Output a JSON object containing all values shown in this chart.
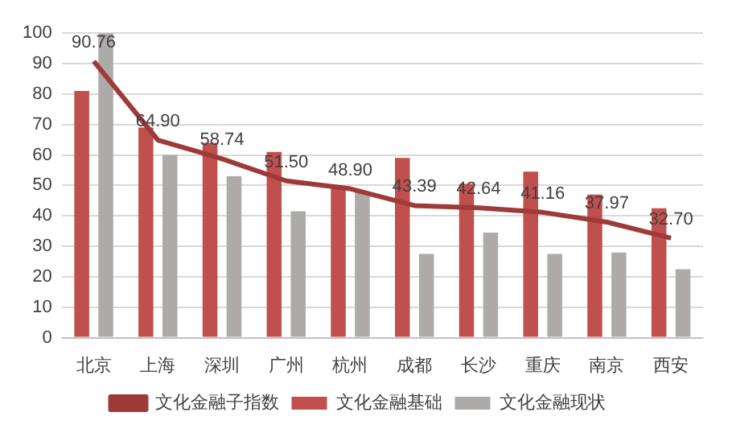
{
  "chart_data": {
    "type": "bar",
    "categories": [
      "北京",
      "上海",
      "深圳",
      "广州",
      "杭州",
      "成都",
      "长沙",
      "重庆",
      "南京",
      "西安"
    ],
    "series": [
      {
        "name": "文化金融基础",
        "color": "#c0504d",
        "values": [
          81,
          69,
          64,
          61,
          49,
          59,
          50.5,
          54.5,
          47,
          42.5
        ]
      },
      {
        "name": "文化金融现状",
        "color": "#aeaaaa",
        "values": [
          100,
          60,
          53,
          41.5,
          48,
          27.5,
          34.5,
          27.5,
          28,
          22.5
        ]
      },
      {
        "name": "文化金融子指数",
        "type": "line",
        "color": "#9e3b3a",
        "values": [
          90.76,
          64.9,
          58.74,
          51.5,
          48.9,
          43.39,
          42.64,
          41.16,
          37.97,
          32.7
        ],
        "value_labels": [
          "90.76",
          "64.90",
          "58.74",
          "51.50",
          "48.90",
          "43.39",
          "42.64",
          "41.16",
          "37.97",
          "32.70"
        ]
      }
    ],
    "ylim": [
      0,
      100
    ],
    "yticks": [
      0,
      10,
      20,
      30,
      40,
      50,
      60,
      70,
      80,
      90,
      100
    ],
    "grid": "y",
    "legend": "bottom",
    "marker": "none"
  }
}
